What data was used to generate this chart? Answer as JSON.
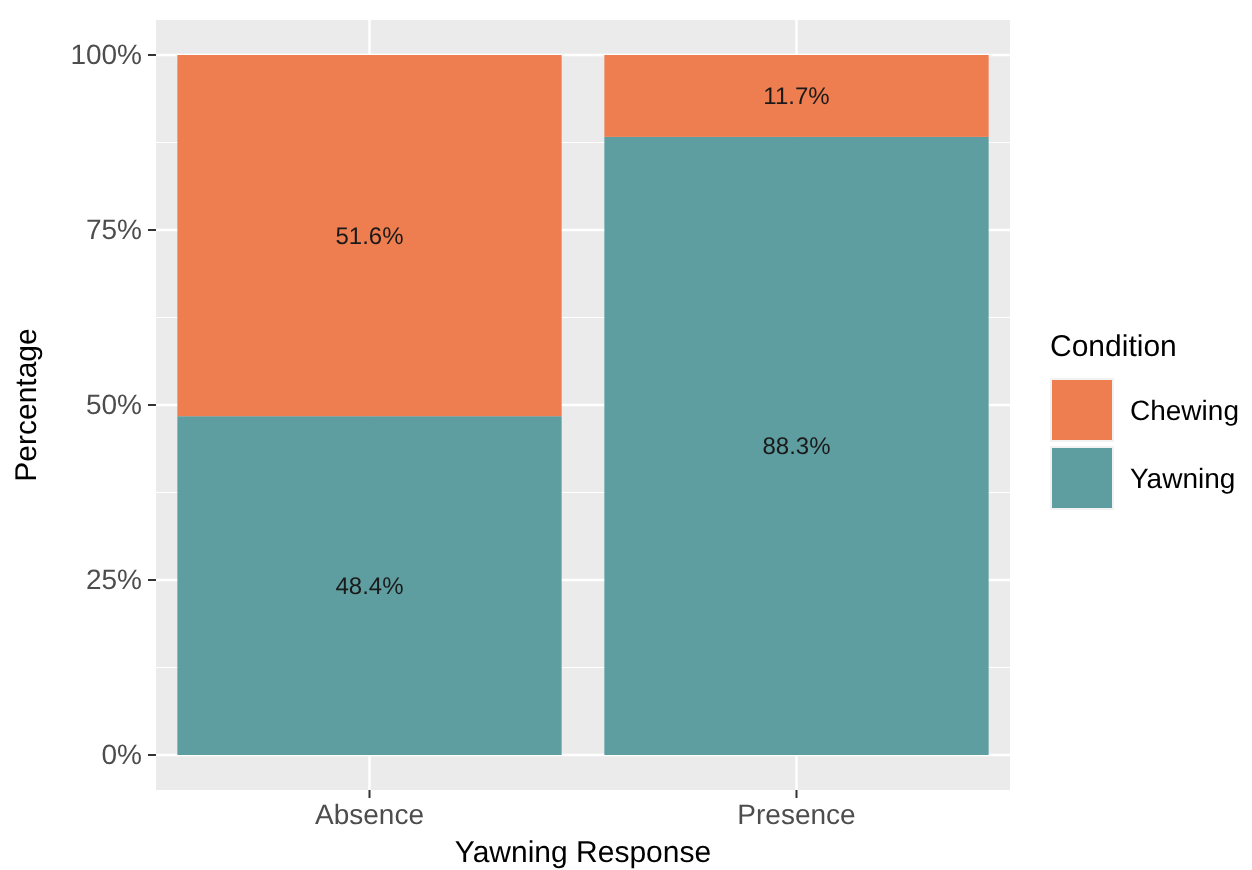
{
  "chart_data": {
    "type": "bar",
    "stacked": true,
    "xlabel": "Yawning Response",
    "ylabel": "Percentage",
    "legend_title": "Condition",
    "legend": "right",
    "grid": true,
    "categories": [
      "Absence",
      "Presence"
    ],
    "series": [
      {
        "name": "Yawning",
        "color": "#5f9ea0",
        "values": [
          48.4,
          88.3
        ],
        "value_labels": [
          "48.4%",
          "88.3%"
        ]
      },
      {
        "name": "Chewing",
        "color": "#ee7d4f",
        "values": [
          51.6,
          11.7
        ],
        "value_labels": [
          "51.6%",
          "11.7%"
        ]
      }
    ],
    "ylim": [
      -5,
      105
    ],
    "yticks": [
      {
        "value": 0,
        "label": "0%"
      },
      {
        "value": 25,
        "label": "25%"
      },
      {
        "value": 50,
        "label": "50%"
      },
      {
        "value": 75,
        "label": "75%"
      },
      {
        "value": 100,
        "label": "100%"
      }
    ]
  }
}
